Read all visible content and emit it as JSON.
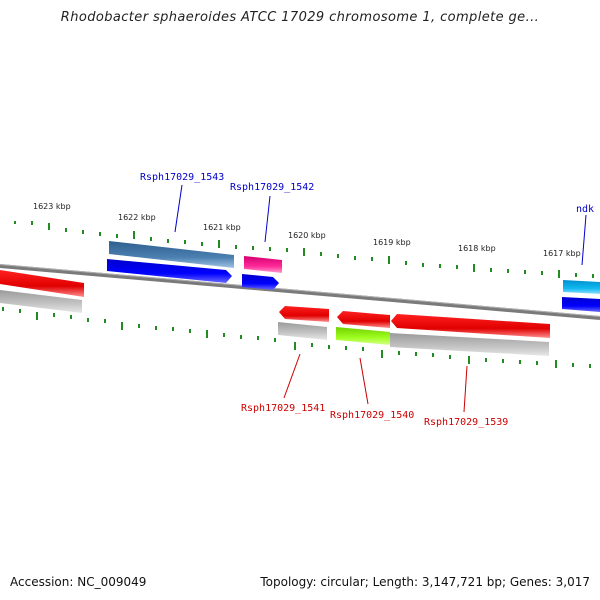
{
  "title": "Rhodobacter sphaeroides ATCC 17029 chromosome 1, complete ge...",
  "footer": {
    "accession": "Accession: NC_009049",
    "topology": "Topology: circular; Length: 3,147,721 bp; Genes: 3,017"
  },
  "scale_labels": [
    "1623 kbp",
    "1622 kbp",
    "1621 kbp",
    "1620 kbp",
    "1619 kbp",
    "1618 kbp",
    "1617 kbp"
  ],
  "gene_labels": {
    "forward": [
      "Rsph17029_1543",
      "Rsph17029_1542",
      "ndk"
    ],
    "reverse": [
      "Rsph17029_1541",
      "Rsph17029_1540",
      "Rsph17029_1539"
    ]
  },
  "colors": {
    "forward_label": "#0000cc",
    "reverse_label": "#cc0000",
    "tick": "#228b22",
    "backbone": "#808080"
  }
}
